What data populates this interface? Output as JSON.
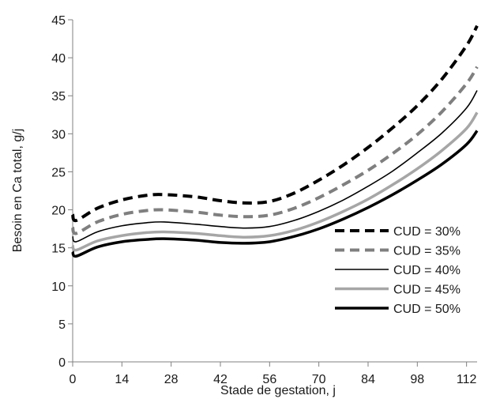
{
  "chart_data": {
    "type": "line",
    "title": "",
    "xlabel": "Stade de gestation, j",
    "ylabel": "Besoin en Ca total, g/j",
    "xlim": [
      0,
      115
    ],
    "ylim": [
      0,
      45
    ],
    "xticks": [
      0,
      14,
      28,
      42,
      56,
      70,
      84,
      98,
      112
    ],
    "yticks": [
      0,
      5,
      10,
      15,
      20,
      25,
      30,
      35,
      40,
      45
    ],
    "grid": false,
    "legend": "right",
    "x": [
      0,
      1,
      7,
      14,
      21,
      26,
      35,
      42,
      49,
      56,
      63,
      70,
      77,
      84,
      91,
      98,
      105,
      112,
      115
    ],
    "series": [
      {
        "name": "CUD = 30%",
        "color": "#000000",
        "style": "dashed",
        "width": 4,
        "values": [
          19.4,
          18.6,
          20.2,
          21.3,
          21.9,
          22.0,
          21.7,
          21.2,
          20.9,
          21.1,
          22.2,
          23.9,
          25.9,
          28.2,
          30.8,
          33.7,
          37.2,
          41.6,
          44.2
        ]
      },
      {
        "name": "CUD = 35%",
        "color": "#7f7f7f",
        "style": "dashed",
        "width": 4,
        "values": [
          17.7,
          16.9,
          18.4,
          19.4,
          19.9,
          20.0,
          19.7,
          19.3,
          19.1,
          19.3,
          20.2,
          21.6,
          23.3,
          25.2,
          27.4,
          29.9,
          32.9,
          36.6,
          38.8
        ]
      },
      {
        "name": "CUD = 40%",
        "color": "#000000",
        "style": "solid",
        "width": 1.6,
        "values": [
          16.5,
          15.8,
          17.1,
          17.9,
          18.3,
          18.4,
          18.1,
          17.8,
          17.6,
          17.8,
          18.6,
          19.8,
          21.3,
          23.1,
          25.1,
          27.5,
          30.1,
          33.4,
          35.7
        ]
      },
      {
        "name": "CUD = 45%",
        "color": "#a6a6a6",
        "style": "solid",
        "width": 3.5,
        "values": [
          15.3,
          14.7,
          15.9,
          16.6,
          17.0,
          17.1,
          16.9,
          16.6,
          16.4,
          16.6,
          17.3,
          18.4,
          19.8,
          21.4,
          23.3,
          25.4,
          27.8,
          30.7,
          32.8
        ]
      },
      {
        "name": "CUD = 50%",
        "color": "#000000",
        "style": "solid",
        "width": 3.5,
        "values": [
          14.5,
          13.9,
          15.1,
          15.8,
          16.1,
          16.2,
          16.0,
          15.7,
          15.6,
          15.8,
          16.5,
          17.5,
          18.8,
          20.3,
          22.0,
          23.9,
          26.0,
          28.6,
          30.4
        ]
      }
    ]
  }
}
